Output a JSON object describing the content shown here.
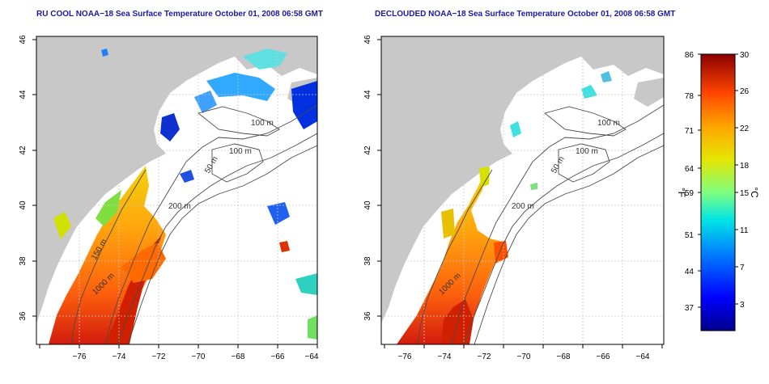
{
  "panels": [
    {
      "title": "RU COOL NOAA−18 Sea Surface Temperature October 01, 2008 06:58 GMT",
      "contour_labels": [
        "100 m",
        "100 m",
        "50 m",
        "200 m",
        "150 m",
        "1000 m"
      ]
    },
    {
      "title": "DECLOUDED NOAA−18 Sea Surface Temperature October 01, 2008 06:58 GMT",
      "contour_labels": [
        "100 m",
        "100 m",
        "50 m",
        "200 m",
        "1000 m"
      ]
    }
  ],
  "axes": {
    "x_ticks": [
      "−76",
      "−74",
      "−72",
      "−70",
      "−68",
      "−66",
      "−64"
    ],
    "y_ticks": [
      "36",
      "38",
      "40",
      "42",
      "44",
      "46"
    ],
    "x_range": [
      -77,
      -63
    ],
    "y_range": [
      35,
      46
    ]
  },
  "colorbar": {
    "unit_left": "°F",
    "unit_right": "°C",
    "fahrenheit_ticks": [
      "86",
      "78",
      "71",
      "64",
      "59",
      "51",
      "44",
      "37"
    ],
    "celsius_ticks": [
      "30",
      "26",
      "22",
      "18",
      "15",
      "11",
      "7",
      "3"
    ],
    "colors": [
      "#00008b",
      "#0000ff",
      "#0080ff",
      "#00e5e5",
      "#7fff7f",
      "#e5e500",
      "#ffa500",
      "#ff4500",
      "#8b0000"
    ]
  },
  "colors": {
    "land": "#c8c8c8",
    "grid": "#c8c8c8",
    "title": "#1a1aa0",
    "contour": "#4a4a4a"
  }
}
